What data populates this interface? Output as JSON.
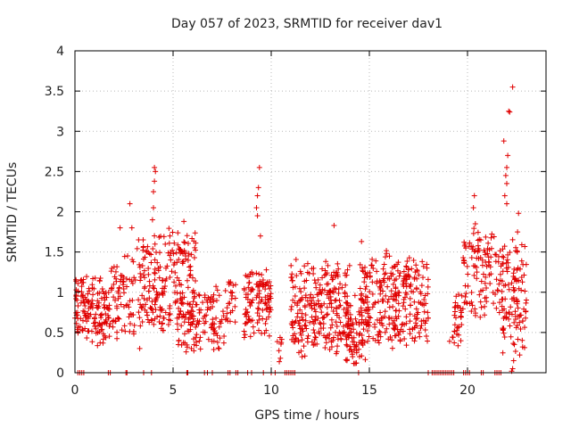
{
  "chart_data": {
    "type": "scatter",
    "title": "Day 057 of 2023, SRMTID for receiver dav1",
    "xlabel": "GPS time / hours",
    "ylabel": "SRMTID / TECUs",
    "xlim": [
      0,
      24
    ],
    "ylim": [
      0,
      4
    ],
    "xticks": [
      0,
      5,
      10,
      15,
      20
    ],
    "yticks": [
      0,
      0.5,
      1,
      1.5,
      2,
      2.5,
      3,
      3.5,
      4
    ],
    "xtick_labels": [
      "0",
      "5",
      "10",
      "15",
      "20"
    ],
    "ytick_labels": [
      "0",
      "0.5",
      "1",
      "1.5",
      "2",
      "2.5",
      "3",
      "3.5",
      "4"
    ],
    "grid": true,
    "marker": "+",
    "color": "#e00000",
    "point_density": [
      {
        "x_range": [
          0.0,
          1.8
        ],
        "y_range": [
          0.45,
          1.1
        ],
        "n": 150
      },
      {
        "x_range": [
          1.8,
          3.0
        ],
        "y_range": [
          0.5,
          1.4
        ],
        "n": 70
      },
      {
        "x_range": [
          3.0,
          6.2
        ],
        "y_range": [
          0.6,
          1.7
        ],
        "n": 220
      },
      {
        "x_range": [
          5.2,
          7.6
        ],
        "y_range": [
          0.3,
          1.0
        ],
        "n": 130
      },
      {
        "x_range": [
          7.6,
          8.2
        ],
        "y_range": [
          0.55,
          1.2
        ],
        "n": 25
      },
      {
        "x_range": [
          8.6,
          10.0
        ],
        "y_range": [
          0.5,
          1.2
        ],
        "n": 110
      },
      {
        "x_range": [
          10.3,
          10.6
        ],
        "y_range": [
          0.25,
          0.5
        ],
        "n": 8
      },
      {
        "x_range": [
          11.0,
          14.0
        ],
        "y_range": [
          0.3,
          1.3
        ],
        "n": 260
      },
      {
        "x_range": [
          13.8,
          15.0
        ],
        "y_range": [
          0.15,
          0.9
        ],
        "n": 90
      },
      {
        "x_range": [
          14.5,
          18.0
        ],
        "y_range": [
          0.4,
          1.4
        ],
        "n": 280
      },
      {
        "x_range": [
          18.9,
          19.4
        ],
        "y_range": [
          0.45,
          0.5
        ],
        "n": 3
      },
      {
        "x_range": [
          19.3,
          19.7
        ],
        "y_range": [
          0.4,
          1.0
        ],
        "n": 30
      },
      {
        "x_range": [
          19.7,
          21.8
        ],
        "y_range": [
          0.7,
          1.7
        ],
        "n": 120
      },
      {
        "x_range": [
          21.7,
          23.0
        ],
        "y_range": [
          0.3,
          1.6
        ],
        "n": 110
      }
    ],
    "peaks": [
      {
        "x": 2.8,
        "y": 2.1
      },
      {
        "x": 2.9,
        "y": 1.8
      },
      {
        "x": 2.3,
        "y": 1.8
      },
      {
        "x": 4.05,
        "y": 2.55
      },
      {
        "x": 4.1,
        "y": 2.5
      },
      {
        "x": 4.05,
        "y": 2.38
      },
      {
        "x": 4.0,
        "y": 2.25
      },
      {
        "x": 4.0,
        "y": 2.05
      },
      {
        "x": 3.95,
        "y": 1.9
      },
      {
        "x": 5.55,
        "y": 1.88
      },
      {
        "x": 9.4,
        "y": 2.55
      },
      {
        "x": 9.35,
        "y": 2.3
      },
      {
        "x": 9.3,
        "y": 2.2
      },
      {
        "x": 9.25,
        "y": 2.05
      },
      {
        "x": 9.3,
        "y": 1.95
      },
      {
        "x": 9.45,
        "y": 1.7
      },
      {
        "x": 13.2,
        "y": 1.83
      },
      {
        "x": 14.6,
        "y": 1.63
      },
      {
        "x": 20.35,
        "y": 2.2
      },
      {
        "x": 20.3,
        "y": 2.05
      },
      {
        "x": 20.4,
        "y": 1.85
      },
      {
        "x": 21.85,
        "y": 2.88
      },
      {
        "x": 22.0,
        "y": 2.55
      },
      {
        "x": 22.05,
        "y": 2.7
      },
      {
        "x": 21.95,
        "y": 2.45
      },
      {
        "x": 22.0,
        "y": 2.35
      },
      {
        "x": 21.9,
        "y": 2.2
      },
      {
        "x": 22.0,
        "y": 2.1
      },
      {
        "x": 22.1,
        "y": 3.25
      },
      {
        "x": 22.15,
        "y": 3.24
      },
      {
        "x": 22.3,
        "y": 3.55
      },
      {
        "x": 22.6,
        "y": 1.98
      },
      {
        "x": 22.55,
        "y": 1.75
      },
      {
        "x": 3.3,
        "y": 0.3
      },
      {
        "x": 14.5,
        "y": 0.2
      },
      {
        "x": 22.3,
        "y": 0.05
      },
      {
        "x": 22.25,
        "y": 0.02
      },
      {
        "x": 22.35,
        "y": 0.15
      }
    ],
    "zero_points_x": [
      0.15,
      0.25,
      0.35,
      0.45,
      1.7,
      1.8,
      2.6,
      2.65,
      3.5,
      3.9,
      5.7,
      5.75,
      6.6,
      6.75,
      7.0,
      7.8,
      7.9,
      8.2,
      8.3,
      8.8,
      9.0,
      9.6,
      10.0,
      10.2,
      10.7,
      10.8,
      10.9,
      11.0,
      11.1,
      11.2,
      14.45,
      18.0,
      18.2,
      18.3,
      18.4,
      18.5,
      18.6,
      18.7,
      18.8,
      18.9,
      19.0,
      19.1,
      19.2,
      19.3,
      19.8,
      19.9,
      20.0,
      20.1,
      20.7,
      20.8,
      21.4,
      21.5,
      21.6,
      21.7
    ]
  }
}
